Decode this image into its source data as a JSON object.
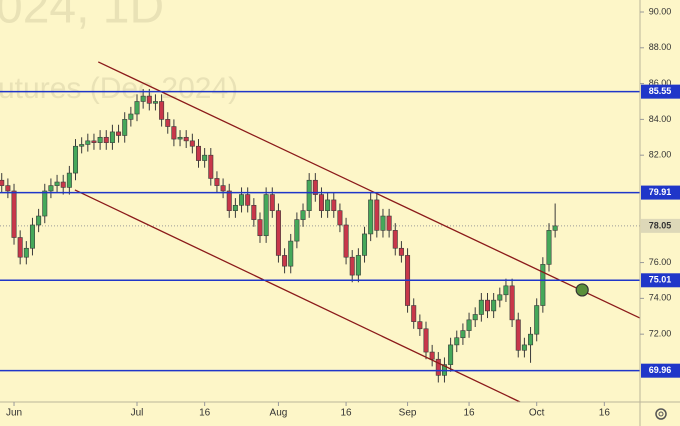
{
  "chart_data": {
    "type": "candlestick",
    "watermark": [
      "024, 1D",
      "utures (Dec 2024)"
    ],
    "x": [
      -2,
      -1,
      0,
      1,
      2,
      3,
      4,
      5,
      6,
      7,
      8,
      9,
      10,
      11,
      12,
      13,
      14,
      15,
      16,
      17,
      18,
      19,
      20,
      21,
      22,
      23,
      24,
      25,
      26,
      27,
      28,
      29,
      30,
      31,
      32,
      33,
      34,
      35,
      36,
      37,
      38,
      39,
      40,
      41,
      42,
      43,
      44,
      45,
      46,
      47,
      48,
      49,
      50,
      51,
      52,
      53,
      54,
      55,
      56,
      57,
      58,
      59,
      60,
      61,
      62,
      63,
      64,
      65,
      66,
      67,
      68,
      69,
      70,
      71,
      72,
      73,
      74,
      75,
      76,
      77,
      78,
      79,
      80,
      81,
      82,
      83,
      84,
      85,
      86,
      87,
      88
    ],
    "open": [
      80.6,
      80.3,
      80.0,
      77.4,
      76.3,
      76.8,
      78.1,
      78.6,
      80.0,
      80.3,
      80.5,
      80.2,
      81.0,
      82.5,
      82.6,
      82.8,
      82.7,
      83.0,
      82.7,
      83.3,
      83.1,
      84.0,
      84.3,
      85.0,
      85.3,
      84.9,
      85.0,
      84.0,
      83.6,
      82.9,
      83.0,
      82.8,
      82.5,
      81.7,
      82.0,
      80.7,
      80.3,
      80.0,
      78.9,
      79.2,
      79.8,
      79.2,
      78.4,
      77.5,
      79.8,
      78.9,
      76.4,
      75.8,
      77.2,
      78.4,
      78.9,
      80.6,
      79.8,
      78.9,
      79.5,
      78.9,
      78.1,
      76.3,
      75.3,
      76.4,
      77.6,
      79.5,
      77.8,
      78.6,
      77.8,
      76.8,
      76.4,
      73.6,
      72.7,
      72.3,
      71.0,
      70.6,
      69.7,
      70.3,
      71.4,
      71.8,
      72.2,
      72.8,
      73.1,
      73.9,
      73.3,
      73.9,
      74.2,
      74.7,
      72.8,
      71.1,
      71.4,
      72.0,
      73.6,
      75.9,
      77.8
    ],
    "high": [
      81.0,
      80.7,
      80.4,
      77.8,
      77.2,
      78.5,
      79.0,
      80.4,
      80.7,
      80.9,
      80.9,
      81.4,
      82.9,
      83.0,
      83.2,
      83.2,
      83.4,
      83.4,
      83.7,
      83.7,
      84.4,
      84.7,
      85.4,
      85.7,
      85.7,
      85.4,
      85.4,
      84.4,
      84.0,
      83.4,
      83.4,
      83.2,
      82.9,
      82.4,
      82.4,
      81.1,
      80.7,
      80.4,
      79.6,
      80.2,
      80.2,
      79.6,
      78.8,
      80.2,
      80.2,
      79.3,
      76.8,
      77.6,
      78.8,
      79.3,
      81.0,
      81.0,
      80.2,
      79.9,
      79.9,
      79.3,
      78.5,
      76.7,
      76.8,
      78.0,
      79.9,
      79.9,
      79.0,
      79.0,
      78.2,
      77.2,
      76.8,
      74.0,
      73.1,
      72.7,
      71.4,
      71.0,
      70.7,
      71.8,
      72.2,
      72.6,
      73.2,
      73.5,
      74.3,
      74.3,
      74.3,
      74.6,
      75.1,
      75.1,
      73.2,
      71.8,
      72.4,
      74.0,
      76.3,
      78.2,
      79.3
    ],
    "low": [
      79.9,
      79.6,
      77.0,
      75.9,
      75.9,
      76.4,
      77.7,
      78.2,
      79.6,
      79.9,
      79.8,
      79.8,
      80.6,
      82.1,
      82.2,
      82.3,
      82.3,
      82.3,
      82.3,
      82.7,
      82.7,
      83.6,
      83.9,
      84.6,
      84.5,
      84.5,
      83.6,
      83.2,
      82.5,
      82.5,
      82.4,
      82.1,
      81.3,
      81.3,
      80.3,
      79.9,
      79.6,
      78.5,
      78.5,
      78.8,
      78.8,
      78.0,
      77.1,
      77.1,
      78.5,
      76.0,
      75.4,
      75.4,
      76.8,
      78.0,
      78.5,
      79.4,
      78.5,
      78.5,
      78.5,
      77.7,
      75.9,
      74.9,
      74.9,
      76.0,
      77.2,
      77.4,
      77.4,
      77.4,
      76.4,
      76.0,
      73.2,
      72.3,
      71.9,
      70.6,
      70.2,
      69.3,
      69.3,
      69.9,
      71.0,
      71.4,
      71.8,
      72.4,
      72.7,
      72.9,
      72.9,
      73.5,
      73.8,
      72.4,
      70.7,
      70.7,
      70.4,
      71.6,
      73.2,
      75.5,
      77.4
    ],
    "close": [
      80.3,
      80.0,
      77.4,
      76.3,
      76.8,
      78.1,
      78.6,
      80.0,
      80.3,
      80.5,
      80.2,
      81.0,
      82.5,
      82.6,
      82.8,
      82.7,
      83.0,
      82.7,
      83.3,
      83.1,
      84.0,
      84.3,
      85.0,
      85.3,
      84.9,
      85.0,
      84.0,
      83.6,
      82.9,
      83.0,
      82.8,
      82.5,
      81.7,
      82.0,
      80.7,
      80.3,
      80.0,
      78.9,
      79.2,
      79.8,
      79.2,
      78.4,
      77.5,
      79.8,
      78.9,
      76.4,
      75.8,
      77.2,
      78.4,
      78.9,
      80.6,
      79.8,
      78.9,
      79.5,
      78.9,
      78.1,
      76.3,
      75.3,
      76.4,
      77.6,
      79.5,
      77.8,
      78.6,
      77.8,
      76.8,
      76.4,
      73.6,
      72.7,
      72.3,
      71.0,
      70.6,
      69.7,
      70.3,
      71.4,
      71.8,
      72.2,
      72.8,
      73.1,
      73.9,
      73.3,
      73.9,
      74.2,
      74.7,
      72.8,
      71.1,
      71.4,
      72.0,
      73.6,
      75.9,
      77.8,
      78.05
    ],
    "up_color": "#45a85a",
    "down_color": "#c8374a",
    "xlim": [
      -2.28,
      101.8
    ],
    "ylim": [
      68.21,
      90.67
    ],
    "xticks": [
      {
        "value": 0,
        "label": "Jun"
      },
      {
        "value": 20,
        "label": "Jul"
      },
      {
        "value": 31,
        "label": "16"
      },
      {
        "value": 43,
        "label": "Aug"
      },
      {
        "value": 54,
        "label": "16"
      },
      {
        "value": 64,
        "label": "Sep"
      },
      {
        "value": 74,
        "label": "16"
      },
      {
        "value": 85,
        "label": "Oct"
      },
      {
        "value": 96,
        "label": "16"
      }
    ],
    "yticks": [
      {
        "value": 90,
        "label": "90.00"
      },
      {
        "value": 88,
        "label": "88.00"
      },
      {
        "value": 86,
        "label": "86.00"
      },
      {
        "value": 84,
        "label": "84.00"
      },
      {
        "value": 82,
        "label": "82.00"
      },
      {
        "value": 76,
        "label": "76.00"
      },
      {
        "value": 74,
        "label": "74.00"
      },
      {
        "value": 72,
        "label": "72.00"
      }
    ],
    "levels": [
      {
        "value": 85.55,
        "label": "85.55"
      },
      {
        "value": 79.91,
        "label": "79.91"
      },
      {
        "value": 75.01,
        "label": "75.01"
      },
      {
        "value": 69.96,
        "label": "69.96"
      }
    ],
    "level_color": "#1f36c9",
    "last_price": {
      "value": 78.05,
      "label": "78.05"
    },
    "trendlines": [
      {
        "x": [
          13.7,
          101.8
        ],
        "y": [
          87.21,
          72.9
        ]
      },
      {
        "x": [
          9.9,
          82.3
        ],
        "y": [
          80.06,
          68.21
        ]
      }
    ],
    "trendline_color": "#8b1a1a",
    "marker": {
      "x": 92.4,
      "y": 74.47,
      "color": "#5a8f3a"
    }
  }
}
